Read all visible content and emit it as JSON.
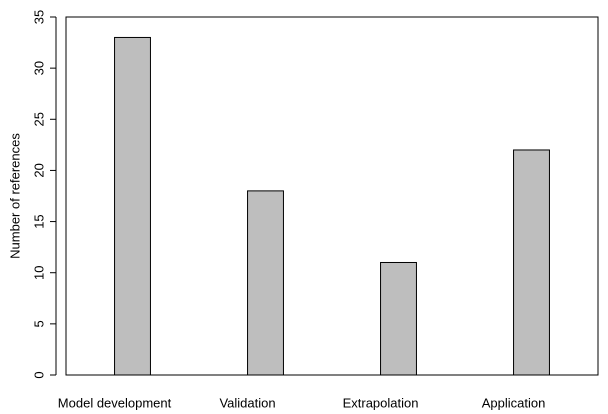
{
  "chart_data": {
    "type": "bar",
    "y_label": "Number of references",
    "categories": [
      "Model development",
      "Validation",
      "Extrapolation",
      "Application"
    ],
    "values": [
      33,
      18,
      11,
      22
    ],
    "color": "#bebebe",
    "ylim": [
      0,
      35
    ],
    "yticks": [
      0,
      5,
      10,
      15,
      20,
      25,
      30,
      35
    ],
    "grid": false
  }
}
